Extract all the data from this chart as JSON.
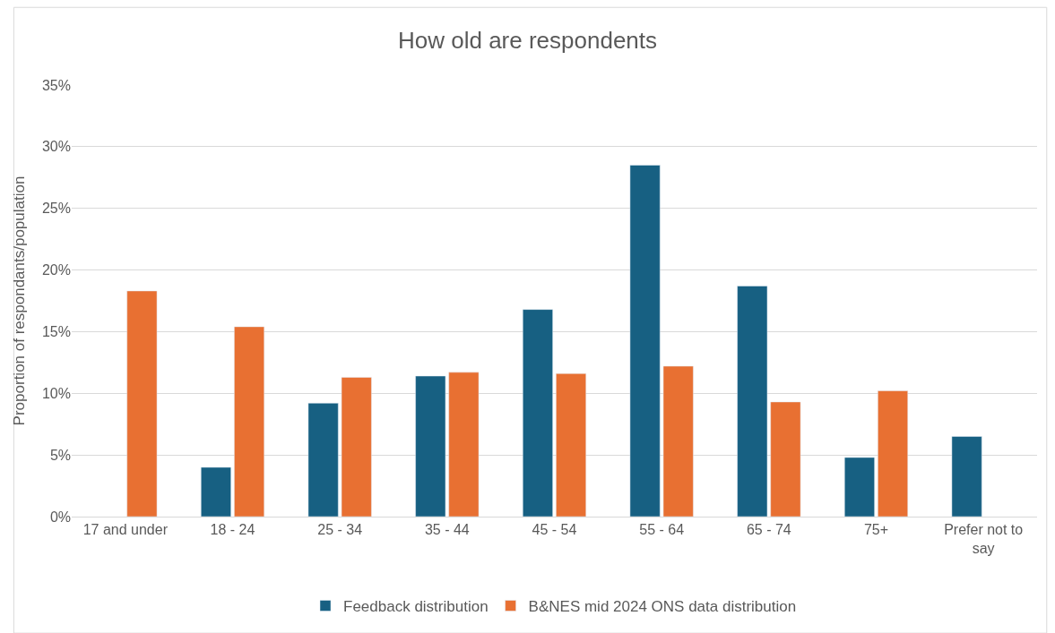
{
  "chart_data": {
    "type": "bar",
    "title": "How old are respondents",
    "ylabel": "Proportion of respondants/population",
    "categories": [
      "17 and under",
      "18 - 24",
      "25 - 34",
      "35 - 44",
      "45 - 54",
      "55 - 64",
      "65 - 74",
      "75+",
      "Prefer not to say"
    ],
    "series": [
      {
        "name": "Feedback distribution",
        "color": "#176082",
        "values": [
          null,
          4.0,
          9.2,
          11.4,
          16.8,
          28.5,
          18.7,
          4.8,
          6.5
        ]
      },
      {
        "name": "B&NES mid 2024 ONS data distribution",
        "color": "#e87032",
        "values": [
          18.3,
          15.4,
          11.3,
          11.7,
          11.6,
          12.2,
          9.3,
          10.2,
          null
        ]
      }
    ],
    "ylim": [
      0,
      35
    ],
    "yticks": [
      {
        "value": 0,
        "label": "0%"
      },
      {
        "value": 5,
        "label": "5%"
      },
      {
        "value": 10,
        "label": "10%"
      },
      {
        "value": 15,
        "label": "15%"
      },
      {
        "value": 20,
        "label": "20%"
      },
      {
        "value": 25,
        "label": "25%"
      },
      {
        "value": 30,
        "label": "30%"
      },
      {
        "value": 35,
        "label": "35%"
      }
    ],
    "grid": "y",
    "legend": "bottom"
  }
}
